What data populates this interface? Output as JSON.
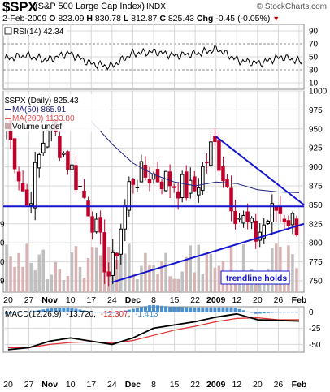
{
  "header": {
    "symbol": "$SPX",
    "name": "(S&P 500 Large Cap Index)",
    "exchange": "INDX",
    "watermark": "© StockCharts.com",
    "date": "2-Feb-2009",
    "open_label": "O",
    "open": "823.09",
    "high_label": "H",
    "high": "830.78",
    "low_label": "L",
    "low": "812.87",
    "close_label": "C",
    "close": "825.43",
    "chg_label": "Chg",
    "chg": "-0.45 (-0.05%)"
  },
  "rsi": {
    "legend": "RSI(14) 42.34",
    "ticks": [
      "90",
      "70",
      "50",
      "30",
      "10"
    ]
  },
  "price": {
    "legend_main": "$SPX (Daily) 825.43",
    "legend_ma50": "MA(50) 865.91",
    "legend_ma200": "MA(200) 1133.80",
    "legend_vol": "Volume undef",
    "annotation": "trendline holds",
    "left_cut_ticks": [
      "825",
      "800",
      "775",
      "750"
    ],
    "left_cut_ticks_text": [
      "9",
      "0",
      "0",
      "9"
    ]
  },
  "macd": {
    "legend_a": "MACD(12,26,9)",
    "legend_b": "-13.720",
    "legend_c": "-12.307",
    "legend_d": "-1.413",
    "ticks": [
      "0",
      "-25",
      "-50"
    ]
  },
  "xaxis": {
    "labels": [
      "20",
      "27",
      "Nov",
      "10",
      "17",
      "24",
      "Dec",
      "8",
      "15",
      "22",
      "2009",
      "12",
      "20",
      "26",
      "Feb"
    ]
  },
  "colors": {
    "up": "#000000",
    "down": "#c0002a",
    "ma50": "#202080",
    "ma200": "#e05050",
    "trendline": "#1515d0",
    "volume": "#c8a8a8",
    "macd_hist": "#4a90d0",
    "macd_line": "#000000",
    "signal_line": "#e03030",
    "grid": "#d8d8d8"
  },
  "chart_data": [
    {
      "type": "line",
      "title": "RSI(14) 42.34",
      "ylim": [
        0,
        100
      ],
      "grid": true,
      "x": [
        "20",
        "27",
        "Nov",
        "10",
        "17",
        "24",
        "Dec",
        "8",
        "15",
        "22",
        "2009",
        "12",
        "20",
        "26",
        "Feb"
      ],
      "series": [
        {
          "name": "RSI(14)",
          "values": [
            47,
            52,
            45,
            56,
            40,
            35,
            55,
            58,
            52,
            55,
            62,
            44,
            40,
            50,
            42
          ]
        }
      ]
    },
    {
      "type": "candlestick",
      "title": "$SPX (Daily) 825.43",
      "ylim": [
        735,
        1000
      ],
      "yticks": [
        1000,
        975,
        950,
        925,
        900,
        875,
        850,
        825,
        800,
        775,
        750
      ],
      "grid": true,
      "x": [
        "20",
        "27",
        "Nov",
        "10",
        "17",
        "24",
        "Dec",
        "8",
        "15",
        "22",
        "2009",
        "12",
        "20",
        "26",
        "Feb"
      ],
      "series": [
        {
          "name": "$SPX",
          "values": [
            955,
            848,
            960,
            905,
            845,
            752,
            885,
            890,
            880,
            865,
            932,
            845,
            808,
            845,
            825
          ]
        },
        {
          "name": "MA(50)",
          "values": [
            null,
            null,
            null,
            null,
            960,
            930,
            905,
            890,
            880,
            875,
            880,
            878,
            870,
            867,
            866
          ]
        }
      ],
      "annotations": [
        "trendline holds"
      ],
      "horizontal_line": 848,
      "trendlines": [
        {
          "from": [
            "2009",
            940
          ],
          "to": [
            "Feb",
            850
          ]
        },
        {
          "from": [
            "24",
            748
          ],
          "to": [
            "Feb",
            825
          ]
        }
      ]
    },
    {
      "type": "line",
      "title": "MACD(12,26,9) -13.720, -12.307, -1.413",
      "ylim": [
        -62,
        8
      ],
      "yticks": [
        0,
        -25,
        -50
      ],
      "grid": true,
      "x": [
        "20",
        "27",
        "Nov",
        "10",
        "17",
        "24",
        "Dec",
        "8",
        "15",
        "22",
        "2009",
        "12",
        "20",
        "26",
        "Feb"
      ],
      "series": [
        {
          "name": "MACD(12,26,9)",
          "values": [
            -58,
            -55,
            -45,
            -40,
            -45,
            -50,
            -40,
            -25,
            -20,
            -15,
            -8,
            -3,
            -12,
            -13,
            -14
          ]
        },
        {
          "name": "Signal",
          "values": [
            -55,
            -55,
            -50,
            -47,
            -46,
            -48,
            -44,
            -36,
            -28,
            -22,
            -15,
            -10,
            -9,
            -12,
            -12
          ]
        },
        {
          "name": "Histogram",
          "values": [
            -3,
            0,
            5,
            7,
            1,
            -2,
            4,
            11,
            8,
            7,
            7,
            7,
            -3,
            -1,
            -1
          ]
        }
      ]
    }
  ]
}
